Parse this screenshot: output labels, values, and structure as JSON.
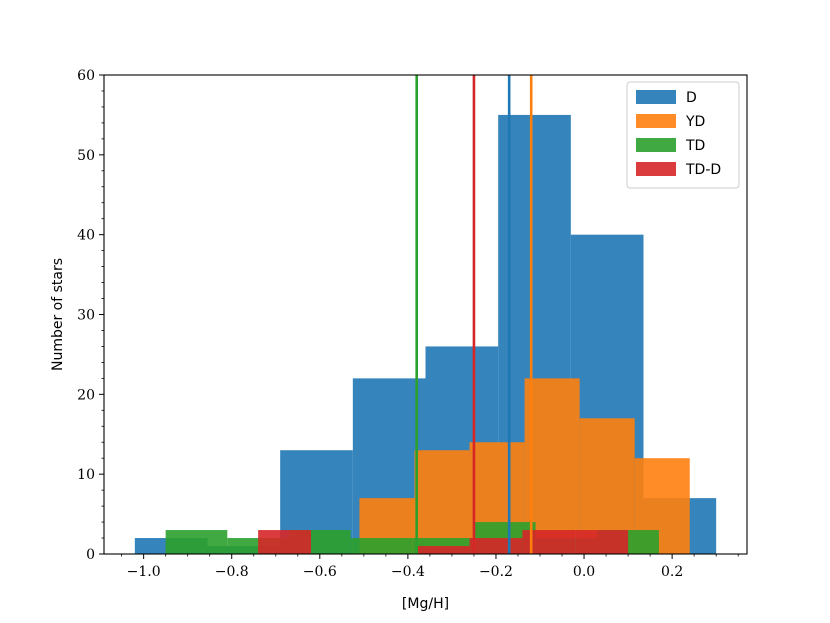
{
  "chart_data": {
    "type": "histogram",
    "xlabel": "[Mg/H]",
    "ylabel": "Number of stars",
    "xlim": [
      -1.09,
      0.37
    ],
    "ylim": [
      0,
      60
    ],
    "xticks": [
      -1.0,
      -0.8,
      -0.6,
      -0.4,
      -0.2,
      0.0,
      0.2
    ],
    "xtick_labels": [
      "−1.0",
      "−0.8",
      "−0.6",
      "−0.4",
      "−0.2",
      "0.0",
      "0.2"
    ],
    "yticks": [
      0,
      10,
      20,
      30,
      40,
      50,
      60
    ],
    "ytick_labels": [
      "0",
      "10",
      "20",
      "30",
      "40",
      "50",
      "60"
    ],
    "grid": false,
    "legend_position": "top-right",
    "series": [
      {
        "name": "D",
        "color": "#1f77b4",
        "bins": [
          {
            "x0": -1.02,
            "x1": -0.855,
            "count": 2
          },
          {
            "x0": -0.855,
            "x1": -0.69,
            "count": 1
          },
          {
            "x0": -0.69,
            "x1": -0.525,
            "count": 13
          },
          {
            "x0": -0.525,
            "x1": -0.36,
            "count": 22
          },
          {
            "x0": -0.36,
            "x1": -0.195,
            "count": 26
          },
          {
            "x0": -0.195,
            "x1": -0.03,
            "count": 55
          },
          {
            "x0": -0.03,
            "x1": 0.135,
            "count": 40
          },
          {
            "x0": 0.135,
            "x1": 0.3,
            "count": 7
          }
        ],
        "mean": -0.17
      },
      {
        "name": "YD",
        "color": "#ff7f0e",
        "bins": [
          {
            "x0": -0.51,
            "x1": -0.385,
            "count": 7
          },
          {
            "x0": -0.385,
            "x1": -0.26,
            "count": 13
          },
          {
            "x0": -0.26,
            "x1": -0.135,
            "count": 14
          },
          {
            "x0": -0.135,
            "x1": -0.01,
            "count": 22
          },
          {
            "x0": -0.01,
            "x1": 0.115,
            "count": 17
          },
          {
            "x0": 0.115,
            "x1": 0.24,
            "count": 12
          }
        ],
        "mean": -0.12
      },
      {
        "name": "TD",
        "color": "#2ca02c",
        "bins": [
          {
            "x0": -0.95,
            "x1": -0.81,
            "count": 3
          },
          {
            "x0": -0.81,
            "x1": -0.67,
            "count": 2
          },
          {
            "x0": -0.67,
            "x1": -0.53,
            "count": 3
          },
          {
            "x0": -0.53,
            "x1": -0.39,
            "count": 2
          },
          {
            "x0": -0.39,
            "x1": -0.25,
            "count": 2
          },
          {
            "x0": -0.25,
            "x1": -0.11,
            "count": 4
          },
          {
            "x0": -0.11,
            "x1": 0.03,
            "count": 2
          },
          {
            "x0": 0.03,
            "x1": 0.17,
            "count": 3
          }
        ],
        "mean": -0.38
      },
      {
        "name": "TD-D",
        "color": "#d62728",
        "bins": [
          {
            "x0": -0.74,
            "x1": -0.62,
            "count": 3
          },
          {
            "x0": -0.62,
            "x1": -0.5,
            "count": 0
          },
          {
            "x0": -0.5,
            "x1": -0.38,
            "count": 0
          },
          {
            "x0": -0.38,
            "x1": -0.26,
            "count": 1
          },
          {
            "x0": -0.26,
            "x1": -0.14,
            "count": 2
          },
          {
            "x0": -0.14,
            "x1": -0.02,
            "count": 3
          },
          {
            "x0": -0.02,
            "x1": 0.1,
            "count": 3
          }
        ],
        "mean": -0.25
      }
    ]
  }
}
